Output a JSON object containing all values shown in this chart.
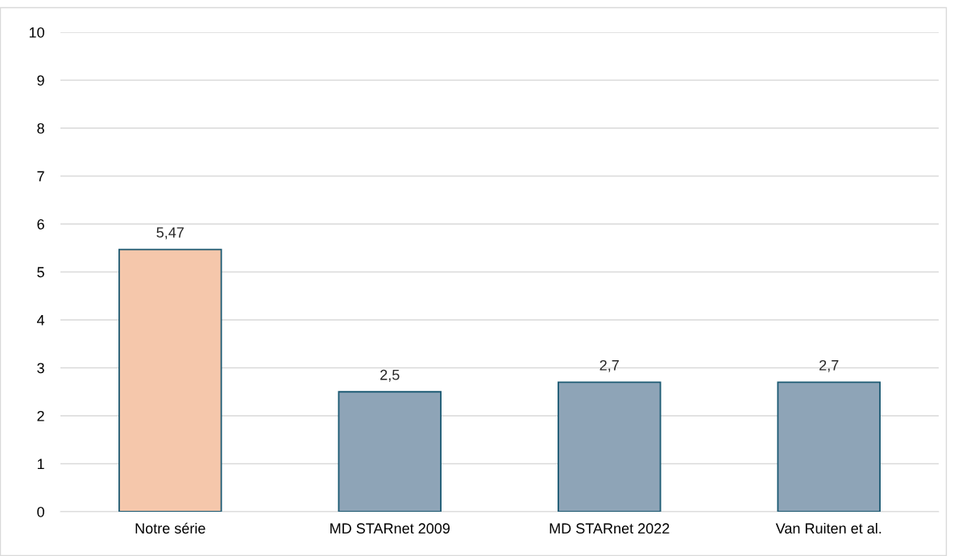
{
  "chart_data": {
    "type": "bar",
    "categories": [
      "Notre série",
      "MD STARnet 2009",
      "MD STARnet 2022",
      "Van Ruiten et al."
    ],
    "values": [
      5.47,
      2.5,
      2.7,
      2.7
    ],
    "colors": [
      "#f5c7ab",
      "#8ea4b7",
      "#8ea4b7",
      "#8ea4b7"
    ],
    "value_labels": [
      "5,47",
      "2,5",
      "2,7",
      "2,7"
    ],
    "ylim": [
      0,
      10
    ],
    "yticks": [
      0,
      1,
      2,
      3,
      4,
      5,
      6,
      7,
      8,
      9,
      10
    ],
    "grid": "y",
    "legend": false
  }
}
